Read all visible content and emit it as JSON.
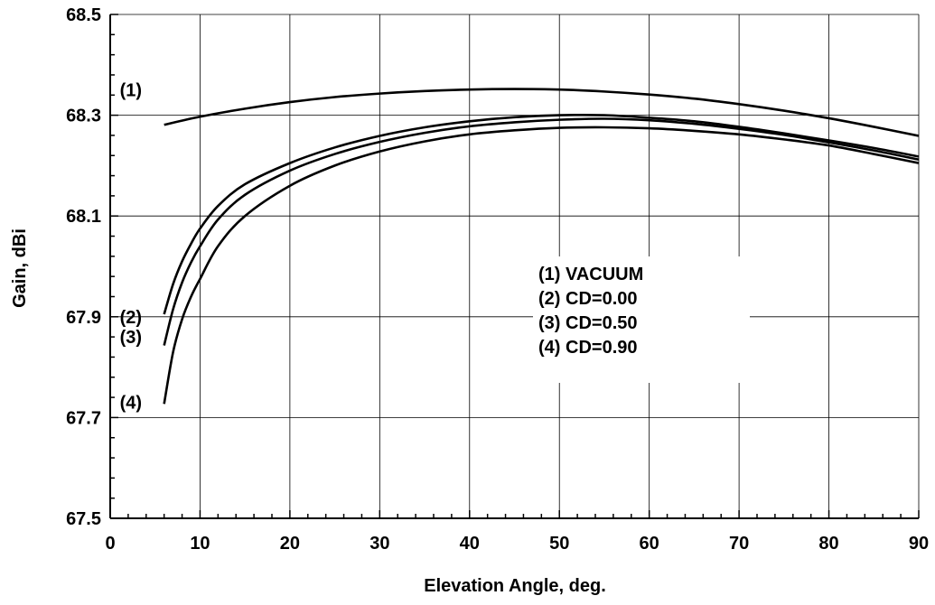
{
  "chart_data": {
    "type": "line",
    "title": "",
    "xlabel": "Elevation Angle, deg.",
    "ylabel": "Gain, dBi",
    "xlim": [
      0,
      90
    ],
    "ylim": [
      67.5,
      68.5
    ],
    "xticks": [
      0,
      10,
      20,
      30,
      40,
      50,
      60,
      70,
      80,
      90
    ],
    "yticks": [
      67.5,
      67.7,
      67.9,
      68.1,
      68.3,
      68.5
    ],
    "xtick_labels": [
      "0",
      "10",
      "20",
      "30",
      "40",
      "50",
      "60",
      "70",
      "80",
      "90"
    ],
    "ytick_labels": [
      "67.5",
      "67.7",
      "67.9",
      "68.1",
      "68.3",
      "68.5"
    ],
    "grid": true,
    "series": [
      {
        "name": "(1)",
        "x": [
          6,
          10,
          15,
          20,
          25,
          30,
          35,
          40,
          45,
          50,
          55,
          60,
          65,
          70,
          75,
          80,
          85,
          90
        ],
        "y": [
          68.281,
          68.297,
          68.313,
          68.326,
          68.336,
          68.343,
          68.348,
          68.351,
          68.352,
          68.351,
          68.347,
          68.341,
          68.333,
          68.322,
          68.309,
          68.294,
          68.277,
          68.259
        ]
      },
      {
        "name": "(2)",
        "x": [
          6,
          7,
          8,
          9,
          10,
          12,
          15,
          20,
          25,
          30,
          35,
          40,
          45,
          50,
          55,
          60,
          65,
          70,
          75,
          80,
          85,
          90
        ],
        "y": [
          67.905,
          67.965,
          68.01,
          68.045,
          68.075,
          68.12,
          68.163,
          68.205,
          68.236,
          68.259,
          68.276,
          68.288,
          68.296,
          68.3,
          68.3,
          68.295,
          68.288,
          68.277,
          68.264,
          68.25,
          68.235,
          68.218
        ]
      },
      {
        "name": "(3)",
        "x": [
          6,
          7,
          8,
          9,
          10,
          12,
          15,
          20,
          25,
          30,
          35,
          40,
          45,
          50,
          55,
          60,
          65,
          70,
          75,
          80,
          85,
          90
        ],
        "y": [
          67.843,
          67.915,
          67.968,
          68.008,
          68.04,
          68.093,
          68.142,
          68.19,
          68.223,
          68.247,
          68.265,
          68.278,
          68.286,
          68.291,
          68.293,
          68.29,
          68.283,
          68.273,
          68.261,
          68.246,
          68.23,
          68.212
        ]
      },
      {
        "name": "(4)",
        "x": [
          6,
          7,
          8,
          9,
          10,
          12,
          15,
          20,
          25,
          30,
          35,
          40,
          45,
          50,
          55,
          60,
          65,
          70,
          75,
          80,
          85,
          90
        ],
        "y": [
          67.727,
          67.83,
          67.895,
          67.94,
          67.975,
          68.04,
          68.1,
          68.16,
          68.2,
          68.228,
          68.248,
          68.262,
          68.27,
          68.275,
          68.276,
          68.274,
          68.269,
          68.262,
          68.252,
          68.24,
          68.223,
          68.205
        ]
      }
    ],
    "series_labels": [
      {
        "text": "(1)",
        "x": 2.3,
        "y": 68.35
      },
      {
        "text": "(2)",
        "x": 2.3,
        "y": 67.9
      },
      {
        "text": "(3)",
        "x": 2.3,
        "y": 67.86
      },
      {
        "text": "(4)",
        "x": 2.3,
        "y": 67.73
      }
    ],
    "legend": {
      "placement": "center-right",
      "entries": [
        "(1) VACUUM",
        "(2) CD=0.00",
        "(3) CD=0.50",
        "(4) CD=0.90"
      ]
    }
  }
}
